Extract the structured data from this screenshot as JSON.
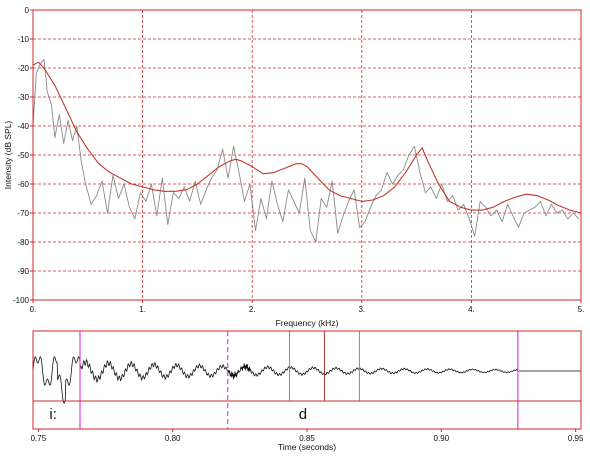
{
  "chart_data": [
    {
      "type": "line",
      "title": "",
      "xlabel": "Frequency (kHz)",
      "ylabel": "Intensity (dB SPL)",
      "xlim": [
        0,
        5
      ],
      "ylim": [
        -100,
        0
      ],
      "x_ticks": [
        "0.",
        "1.",
        "2.",
        "3.",
        "4.",
        "5."
      ],
      "y_ticks": [
        "0",
        "-10",
        "-20",
        "-30",
        "-40",
        "-50",
        "-60",
        "-70",
        "-80",
        "-90",
        "-100"
      ],
      "grid": true,
      "colors": {
        "frame": "#cc2a2a",
        "grid": "#cc2a2a",
        "spectrum": "#8a8a8a",
        "envelope": "#c0392b"
      },
      "series": [
        {
          "x": [
            0.0,
            0.03,
            0.06,
            0.1,
            0.13,
            0.17,
            0.2,
            0.24,
            0.28,
            0.32,
            0.36,
            0.4,
            0.44,
            0.48,
            0.53,
            0.58,
            0.63,
            0.68,
            0.73,
            0.78,
            0.83,
            0.88,
            0.93,
            0.98,
            1.03,
            1.08,
            1.13,
            1.18,
            1.23,
            1.28,
            1.33,
            1.38,
            1.43,
            1.48,
            1.53,
            1.58,
            1.63,
            1.68,
            1.73,
            1.78,
            1.83,
            1.88,
            1.93,
            1.98,
            2.03,
            2.08,
            2.13,
            2.18,
            2.23,
            2.28,
            2.33,
            2.38,
            2.43,
            2.48,
            2.53,
            2.58,
            2.63,
            2.68,
            2.73,
            2.78,
            2.83,
            2.88,
            2.93,
            2.98,
            3.03,
            3.08,
            3.13,
            3.18,
            3.23,
            3.28,
            3.33,
            3.38,
            3.43,
            3.48,
            3.53,
            3.58,
            3.63,
            3.68,
            3.73,
            3.78,
            3.83,
            3.88,
            3.93,
            3.98,
            4.03,
            4.08,
            4.13,
            4.18,
            4.23,
            4.28,
            4.33,
            4.38,
            4.43,
            4.48,
            4.53,
            4.58,
            4.63,
            4.68,
            4.73,
            4.78,
            4.83,
            4.88,
            4.93,
            4.98
          ],
          "values": [
            -40,
            -22,
            -19,
            -17,
            -28,
            -33,
            -44,
            -36,
            -46,
            -38,
            -45,
            -40,
            -52,
            -60,
            -67,
            -64,
            -59,
            -70,
            -57,
            -65,
            -60,
            -68,
            -72,
            -63,
            -66,
            -60,
            -71,
            -58,
            -74,
            -63,
            -65,
            -61,
            -66,
            -59,
            -67,
            -62,
            -58,
            -55,
            -48,
            -58,
            -47,
            -56,
            -66,
            -60,
            -76,
            -65,
            -72,
            -59,
            -67,
            -73,
            -62,
            -66,
            -70,
            -58,
            -76,
            -80,
            -65,
            -68,
            -59,
            -77,
            -71,
            -66,
            -62,
            -75,
            -73,
            -68,
            -64,
            -62,
            -56,
            -60,
            -57,
            -55,
            -50,
            -47,
            -56,
            -63,
            -61,
            -65,
            -60,
            -66,
            -64,
            -69,
            -67,
            -72,
            -78,
            -66,
            -68,
            -71,
            -69,
            -73,
            -67,
            -71,
            -75,
            -70,
            -69,
            -68,
            -66,
            -71,
            -67,
            -70,
            -69,
            -72,
            -70,
            -72
          ]
        },
        {
          "x": [
            0.0,
            0.05,
            0.1,
            0.2,
            0.3,
            0.4,
            0.5,
            0.6,
            0.7,
            0.8,
            0.9,
            1.0,
            1.1,
            1.2,
            1.3,
            1.4,
            1.5,
            1.6,
            1.7,
            1.8,
            1.85,
            1.9,
            2.0,
            2.1,
            2.2,
            2.3,
            2.4,
            2.45,
            2.5,
            2.6,
            2.7,
            2.8,
            2.9,
            3.0,
            3.1,
            3.2,
            3.3,
            3.4,
            3.5,
            3.55,
            3.6,
            3.7,
            3.8,
            3.9,
            4.0,
            4.1,
            4.2,
            4.3,
            4.4,
            4.5,
            4.6,
            4.7,
            4.8,
            4.9,
            5.0
          ],
          "values": [
            -19,
            -18,
            -20,
            -26,
            -34,
            -42,
            -48,
            -53,
            -56,
            -58,
            -60,
            -61,
            -62,
            -62.5,
            -62.5,
            -62,
            -60,
            -57,
            -54,
            -52,
            -51.5,
            -52,
            -54,
            -56.5,
            -56,
            -54.5,
            -53,
            -53,
            -54,
            -58,
            -62,
            -64,
            -65,
            -66,
            -65.5,
            -64,
            -61,
            -56,
            -50,
            -47.5,
            -52,
            -60,
            -66,
            -68,
            -69,
            -69,
            -68,
            -66,
            -64.5,
            -63.5,
            -64,
            -65.5,
            -67.5,
            -69,
            -70
          ]
        }
      ]
    },
    {
      "type": "line",
      "title": "",
      "xlabel": "Time (seconds)",
      "ylabel": "",
      "xlim": [
        0.748,
        0.952
      ],
      "x_ticks": [
        "0.75",
        "0.80",
        "0.85",
        "0.90",
        "0.95"
      ],
      "x_tick_values": [
        0.75,
        0.8,
        0.85,
        0.9,
        0.95
      ],
      "colors": {
        "frame": "#cc2a2a",
        "waveform": "#111111",
        "boundary": "#e040e0",
        "marker_cyan": "#3aa0c8",
        "marker_red": "#b03a2e"
      },
      "segment_boundaries": [
        0.7655,
        0.8205,
        0.9285
      ],
      "dashed_boundary": 0.8205,
      "markers_cyan": [
        0.8435,
        0.8695
      ],
      "marker_red": 0.8565,
      "phone_labels": [
        {
          "text": "i:",
          "t": 0.7555
        },
        {
          "text": "d",
          "t": 0.8485
        }
      ]
    }
  ]
}
